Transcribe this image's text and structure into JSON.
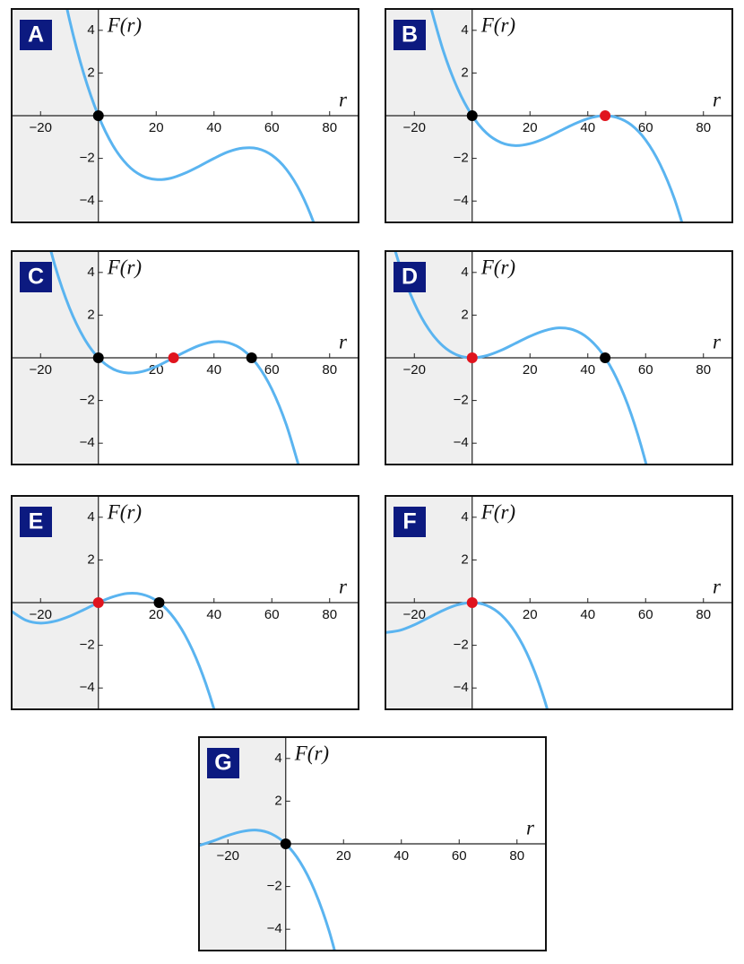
{
  "chart_data": [
    {
      "type": "line",
      "label": "A",
      "xlabel": "r",
      "ylabel": "F(r)",
      "xlim": [
        -30,
        90
      ],
      "ylim": [
        -5,
        5
      ],
      "xticks": [
        {
          "value": -20,
          "label": "−20"
        },
        20,
        40,
        60,
        80
      ],
      "yticks": [
        {
          "value": -4,
          "label": "−4"
        },
        {
          "value": -2,
          "label": "−2"
        },
        2,
        4
      ],
      "shade_negative_r": true,
      "x": [
        -15,
        -10,
        -5,
        0,
        5,
        10,
        15,
        20,
        25,
        30,
        35,
        40,
        45,
        50,
        55,
        60,
        65,
        70,
        75,
        80
      ],
      "series": [
        {
          "color": "#5ab4f0",
          "values": [
            7.77,
            4.5,
            1.94,
            0,
            -1.39,
            -2.3,
            -2.81,
            -2.99,
            -2.93,
            -2.69,
            -2.36,
            -2.0,
            -1.69,
            -1.52,
            -1.54,
            -1.85,
            -2.51,
            -3.6,
            -5.2,
            -7.38
          ]
        }
      ],
      "points": {
        "x": [
          0
        ],
        "y": [
          0
        ],
        "colors": [
          "#000000"
        ]
      }
    },
    {
      "type": "line",
      "label": "B",
      "xlabel": "r",
      "ylabel": "F(r)",
      "xlim": [
        -30,
        90
      ],
      "ylim": [
        -5,
        5
      ],
      "xticks": [
        {
          "value": -20,
          "label": "−20"
        },
        20,
        40,
        60,
        80
      ],
      "yticks": [
        {
          "value": -4,
          "label": "−4"
        },
        {
          "value": -2,
          "label": "−2"
        },
        2,
        4
      ],
      "shade_negative_r": true,
      "x": [
        -15,
        -10,
        -5,
        0,
        5,
        10,
        15,
        20,
        25,
        30,
        35,
        40,
        45,
        50,
        55,
        60,
        65,
        70,
        75
      ],
      "series": [
        {
          "color": "#5ab4f0",
          "values": [
            5.41,
            3.04,
            1.26,
            0,
            -0.82,
            -1.26,
            -1.4,
            -1.31,
            -1.07,
            -0.74,
            -0.41,
            -0.14,
            0,
            -0.08,
            -0.43,
            -1.14,
            -2.28,
            -3.91,
            -6.12
          ]
        }
      ],
      "points": {
        "x": [
          0,
          46
        ],
        "y": [
          0,
          0
        ],
        "colors": [
          "#000000",
          "#e0141e"
        ]
      }
    },
    {
      "type": "line",
      "label": "C",
      "xlabel": "r",
      "ylabel": "F(r)",
      "xlim": [
        -30,
        90
      ],
      "ylim": [
        -5,
        5
      ],
      "xticks": [
        {
          "value": -20,
          "label": "−20"
        },
        20,
        40,
        60,
        80
      ],
      "yticks": [
        {
          "value": -4,
          "label": "−4"
        },
        {
          "value": -2,
          "label": "−2"
        },
        2,
        4
      ],
      "shade_negative_r": true,
      "x": [
        -20,
        -15,
        -10,
        -5,
        0,
        5,
        10,
        15,
        20,
        25,
        30,
        35,
        40,
        45,
        50,
        55,
        60,
        65,
        70
      ],
      "series": [
        {
          "color": "#5ab4f0",
          "values": [
            6.92,
            4.31,
            2.34,
            0.93,
            0,
            -0.52,
            -0.71,
            -0.65,
            -0.41,
            -0.07,
            0.28,
            0.58,
            0.75,
            0.7,
            0.37,
            -0.33,
            -1.47,
            -3.13,
            -5.39
          ]
        }
      ],
      "points": {
        "x": [
          0,
          26,
          53
        ],
        "y": [
          0,
          0,
          0
        ],
        "colors": [
          "#000000",
          "#e0141e",
          "#000000"
        ]
      }
    },
    {
      "type": "line",
      "label": "D",
      "xlabel": "r",
      "ylabel": "F(r)",
      "xlim": [
        -30,
        90
      ],
      "ylim": [
        -5,
        5
      ],
      "xticks": [
        {
          "value": -20,
          "label": "−20"
        },
        20,
        40,
        60,
        80
      ],
      "yticks": [
        {
          "value": -4,
          "label": "−4"
        },
        {
          "value": -2,
          "label": "−2"
        },
        2,
        4
      ],
      "shade_negative_r": true,
      "x": [
        -30,
        -25,
        -20,
        -15,
        -10,
        -5,
        0,
        5,
        10,
        15,
        20,
        25,
        30,
        35,
        40,
        45,
        50,
        55,
        60,
        65
      ],
      "series": [
        {
          "color": "#5ab4f0",
          "values": [
            6.63,
            4.3,
            2.56,
            1.33,
            0.54,
            0.12,
            0,
            0.1,
            0.35,
            0.68,
            1.01,
            1.27,
            1.4,
            1.31,
            0.93,
            0.2,
            -0.97,
            -2.64,
            -4.89,
            -7.79
          ]
        }
      ],
      "points": {
        "x": [
          0,
          46
        ],
        "y": [
          0,
          0
        ],
        "colors": [
          "#e0141e",
          "#000000"
        ]
      }
    },
    {
      "type": "line",
      "label": "E",
      "xlabel": "r",
      "ylabel": "F(r)",
      "xlim": [
        -30,
        90
      ],
      "ylim": [
        -5,
        5
      ],
      "xticks": [
        {
          "value": -20,
          "label": "−20"
        },
        20,
        40,
        60,
        80
      ],
      "yticks": [
        {
          "value": -4,
          "label": "−4"
        },
        {
          "value": -2,
          "label": "−2"
        },
        2,
        4
      ],
      "shade_negative_r": true,
      "x": [
        -30,
        -25,
        -20,
        -15,
        -10,
        -5,
        0,
        5,
        10,
        15,
        20,
        25,
        30,
        35,
        40,
        45
      ],
      "series": [
        {
          "color": "#5ab4f0",
          "values": [
            -0.41,
            -0.83,
            -0.96,
            -0.87,
            -0.64,
            -0.33,
            0,
            0.27,
            0.43,
            0.39,
            0.1,
            -0.52,
            -1.53,
            -3.0,
            -4.99,
            -7.58
          ]
        }
      ],
      "points": {
        "x": [
          0,
          21
        ],
        "y": [
          0,
          0
        ],
        "colors": [
          "#e0141e",
          "#000000"
        ]
      }
    },
    {
      "type": "line",
      "label": "F",
      "xlabel": "r",
      "ylabel": "F(r)",
      "xlim": [
        -30,
        90
      ],
      "ylim": [
        -5,
        5
      ],
      "xticks": [
        {
          "value": -20,
          "label": "−20"
        },
        20,
        40,
        60,
        80
      ],
      "yticks": [
        {
          "value": -4,
          "label": "−4"
        },
        {
          "value": -2,
          "label": "−2"
        },
        2,
        4
      ],
      "shade_negative_r": true,
      "x": [
        -30,
        -25,
        -20,
        -15,
        -10,
        -5,
        0,
        5,
        10,
        15,
        20,
        25,
        30
      ],
      "series": [
        {
          "color": "#5ab4f0",
          "values": [
            -1.4,
            -1.3,
            -1.04,
            -0.7,
            -0.36,
            -0.1,
            0,
            -0.13,
            -0.57,
            -1.4,
            -2.7,
            -4.55,
            -7.02
          ]
        }
      ],
      "points": {
        "x": [
          0
        ],
        "y": [
          0
        ],
        "colors": [
          "#e0141e"
        ]
      }
    },
    {
      "type": "line",
      "label": "G",
      "xlabel": "r",
      "ylabel": "F(r)",
      "xlim": [
        -30,
        90
      ],
      "ylim": [
        -5,
        5
      ],
      "xticks": [
        {
          "value": -20,
          "label": "−20"
        },
        20,
        40,
        60,
        80
      ],
      "yticks": [
        {
          "value": -4,
          "label": "−4"
        },
        {
          "value": -2,
          "label": "−2"
        },
        2,
        4
      ],
      "shade_negative_r": true,
      "x": [
        -30,
        -25,
        -20,
        -15,
        -10,
        -5,
        0,
        5,
        10,
        15,
        20
      ],
      "series": [
        {
          "color": "#5ab4f0",
          "values": [
            -0.08,
            0.14,
            0.39,
            0.58,
            0.64,
            0.47,
            0,
            -0.86,
            -2.19,
            -4.08,
            -6.61
          ]
        }
      ],
      "points": {
        "x": [
          0
        ],
        "y": [
          0
        ],
        "colors": [
          "#000000"
        ]
      }
    }
  ]
}
